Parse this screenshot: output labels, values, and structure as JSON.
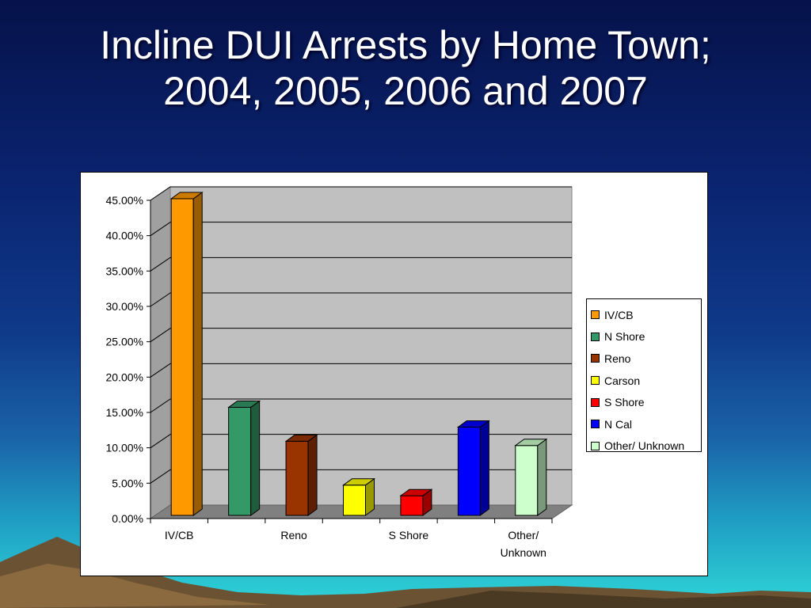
{
  "slide": {
    "title_line1": "Incline DUI Arrests by Home Town;",
    "title_line2": "2004, 2005, 2006 and 2007"
  },
  "chart_data": {
    "type": "bar",
    "categories": [
      "IV/CB",
      "N Shore",
      "Reno",
      "Carson",
      "S Shore",
      "N Cal",
      "Other/ Unknown"
    ],
    "values": [
      45.0,
      15.5,
      10.7,
      4.5,
      3.0,
      12.7,
      10.1
    ],
    "colors": [
      "#ff9900",
      "#339966",
      "#993300",
      "#ffff00",
      "#ff0000",
      "#0000ff",
      "#ccffcc"
    ],
    "x_tick_labels": [
      "IV/CB",
      "",
      "Reno",
      "",
      "S Shore",
      "",
      "Other/ Unknown"
    ],
    "y_tick_labels": [
      "0.00%",
      "5.00%",
      "10.00%",
      "15.00%",
      "20.00%",
      "25.00%",
      "30.00%",
      "35.00%",
      "40.00%",
      "45.00%"
    ],
    "ylim": [
      0,
      45
    ],
    "grid": true,
    "legend_position": "right",
    "style": "3d-column"
  }
}
